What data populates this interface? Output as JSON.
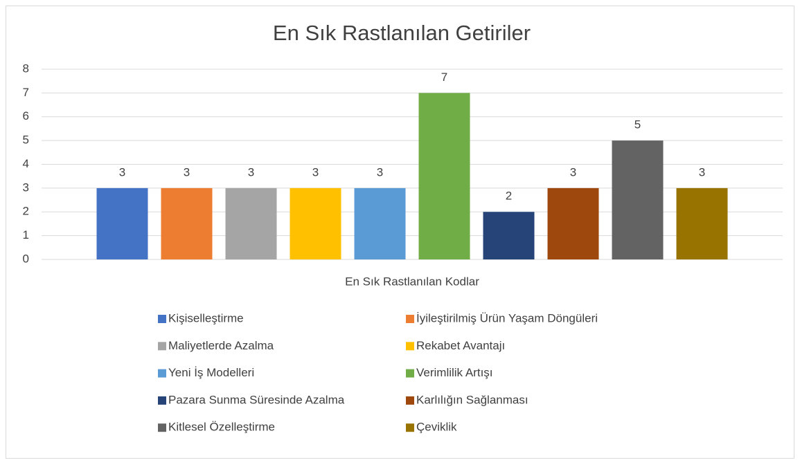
{
  "chart_data": {
    "type": "bar",
    "title": "En Sık Rastlanılan Getiriler",
    "categories": [
      "En Sık Rastlanılan Kodlar"
    ],
    "series": [
      {
        "name": "Kişiselleştirme",
        "color": "#4472c4",
        "values": [
          3
        ]
      },
      {
        "name": "İyileştirilmiş Ürün Yaşam Döngüleri",
        "color": "#ed7d31",
        "values": [
          3
        ]
      },
      {
        "name": "Maliyetlerde Azalma",
        "color": "#a5a5a5",
        "values": [
          3
        ]
      },
      {
        "name": "Rekabet Avantajı",
        "color": "#ffc000",
        "values": [
          3
        ]
      },
      {
        "name": "Yeni İş Modelleri",
        "color": "#5b9bd5",
        "values": [
          3
        ]
      },
      {
        "name": "Verimlilik Artışı",
        "color": "#70ad47",
        "values": [
          7
        ]
      },
      {
        "name": "Pazara Sunma Süresinde Azalma",
        "color": "#264478",
        "values": [
          2
        ]
      },
      {
        "name": "Karlılığın Sağlanması",
        "color": "#9e480e",
        "values": [
          3
        ]
      },
      {
        "name": "Kitlesel Özelleştirme",
        "color": "#636363",
        "values": [
          5
        ]
      },
      {
        "name": "Çeviklik",
        "color": "#997300",
        "values": [
          3
        ]
      }
    ],
    "ylim": [
      0,
      8
    ],
    "yticks": [
      0,
      1,
      2,
      3,
      4,
      5,
      6,
      7,
      8
    ],
    "grid": true,
    "legend": "bottom"
  }
}
